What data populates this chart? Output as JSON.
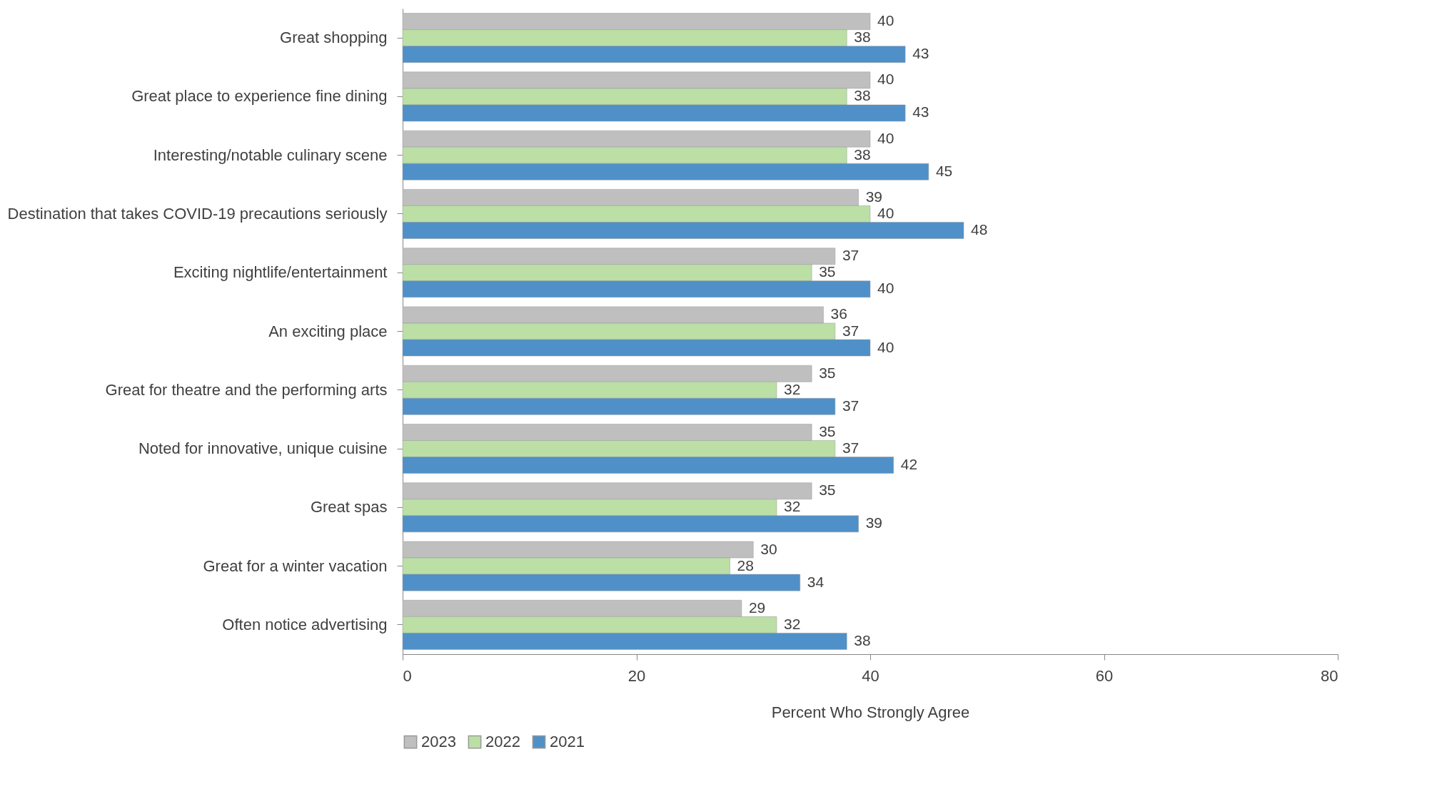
{
  "chart_data": {
    "type": "bar",
    "orientation": "horizontal",
    "xlabel": "Percent Who Strongly Agree",
    "categories": [
      "Great shopping",
      "Great place to experience fine dining",
      "Interesting/notable culinary scene",
      "Destination that takes COVID-19 precautions seriously",
      "Exciting nightlife/entertainment",
      "An exciting place",
      "Great for theatre and the performing arts",
      "Noted for innovative, unique cuisine",
      "Great spas",
      "Great for a winter vacation",
      "Often notice advertising"
    ],
    "series": [
      {
        "name": "2023",
        "color": "#bfbfbf",
        "values": [
          40,
          40,
          40,
          39,
          37,
          36,
          35,
          35,
          35,
          30,
          29
        ]
      },
      {
        "name": "2022",
        "color": "#bbdfa5",
        "values": [
          38,
          38,
          38,
          40,
          35,
          37,
          32,
          37,
          32,
          28,
          32
        ]
      },
      {
        "name": "2021",
        "color": "#4f90c8",
        "values": [
          43,
          43,
          45,
          48,
          40,
          40,
          37,
          42,
          39,
          34,
          38
        ]
      }
    ],
    "xlim": [
      0,
      80
    ],
    "xticks": [
      0,
      20,
      40,
      60,
      80
    ],
    "data_labels": true,
    "legend": "bottom",
    "grid": false
  }
}
